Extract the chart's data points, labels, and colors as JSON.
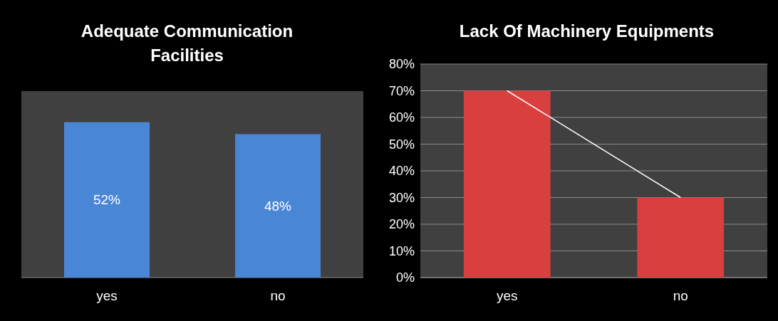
{
  "chart_data": [
    {
      "type": "bar",
      "title": "Adequate Communication Facilities",
      "categories": [
        "yes",
        "no"
      ],
      "values": [
        52,
        48
      ],
      "color": "#4a86d6",
      "data_labels": true,
      "value_labels": [
        "52%",
        "48%"
      ]
    },
    {
      "type": "bar",
      "title": "Lack Of Machinery Equipments",
      "categories": [
        "yes",
        "no"
      ],
      "ylim": [
        0,
        80
      ],
      "yticks": [
        {
          "value": 0,
          "label": "0%"
        },
        {
          "value": 10,
          "label": "10%"
        },
        {
          "value": 20,
          "label": "20%"
        },
        {
          "value": 30,
          "label": "30%"
        },
        {
          "value": 40,
          "label": "40%"
        },
        {
          "value": 50,
          "label": "50%"
        },
        {
          "value": 60,
          "label": "60%"
        },
        {
          "value": 70,
          "label": "70%"
        },
        {
          "value": 80,
          "label": "80%"
        }
      ],
      "grid": "y",
      "series": [
        {
          "type": "bar",
          "color": "#d93f3f",
          "values": [
            70,
            30
          ]
        },
        {
          "type": "line",
          "color": "#ffffff",
          "values": [
            70,
            30
          ]
        }
      ]
    }
  ]
}
